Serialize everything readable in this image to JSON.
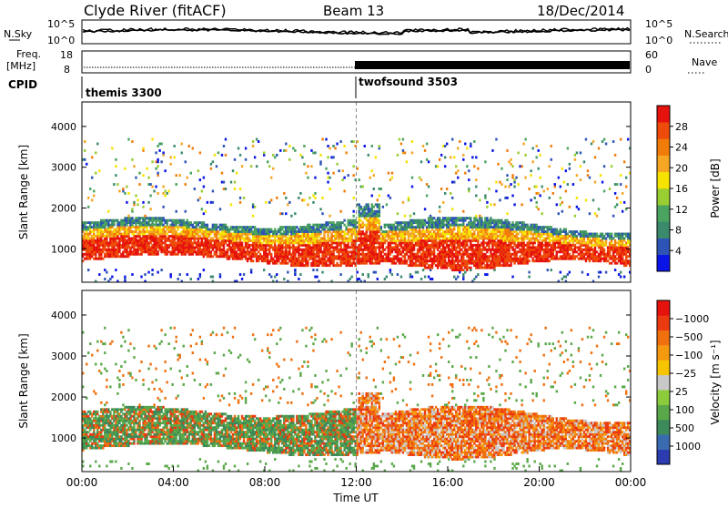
{
  "header": {
    "station": "Clyde River (fitACF)",
    "beam": "Beam 13",
    "date": "18/Dec/2014"
  },
  "status_panels": {
    "nsky_label": "N.Sky",
    "nsearch_label": "N.Search",
    "noise_ticks_left": [
      "10^5",
      "10^0"
    ],
    "noise_ticks_right": [
      "10^5",
      "10^0"
    ],
    "freq_label": "Freq.",
    "freq_unit": "[MHz]",
    "freq_ticks": [
      "18",
      "8"
    ],
    "nave_label": "Nave",
    "nave_ticks": [
      "60",
      "0"
    ],
    "cpid_label": "CPID",
    "cpid_segments": [
      {
        "name": "themis 3300",
        "start_hour": 0,
        "end_hour": 12
      },
      {
        "name": "twofsound 3503",
        "start_hour": 12,
        "end_hour": 24
      }
    ]
  },
  "chart_data": [
    {
      "type": "heatmap",
      "panel": "power",
      "ylabel": "Slant Range [km]",
      "xlabel": "Time UT",
      "ylim": [
        180,
        4600
      ],
      "yticks": [
        "1000",
        "2000",
        "3000",
        "4000"
      ],
      "xticks": [
        "00:00",
        "04:00",
        "08:00",
        "12:00",
        "16:00",
        "20:00",
        "00:00"
      ],
      "colorbar_label": "Power [dB]",
      "colorbar_ticks": [
        "4",
        "8",
        "12",
        "16",
        "20",
        "24",
        "28"
      ],
      "colorbar_colors": [
        "#0a14e6",
        "#2d53b6",
        "#3b8a6b",
        "#4aa35e",
        "#9acd32",
        "#f6e400",
        "#f5a623",
        "#f27c0a",
        "#ee4a0a",
        "#e6120e"
      ],
      "main_band_km": [
        700,
        1700
      ],
      "sparse_echo_km": [
        1800,
        3600
      ]
    },
    {
      "type": "heatmap",
      "panel": "velocity",
      "ylabel": "Slant Range [km]",
      "xlabel": "Time UT",
      "ylim": [
        180,
        4600
      ],
      "yticks": [
        "1000",
        "2000",
        "3000",
        "4000"
      ],
      "xticks": [
        "00:00",
        "04:00",
        "08:00",
        "12:00",
        "16:00",
        "20:00",
        "00:00"
      ],
      "colorbar_label": "Velocity [m s⁻¹]",
      "colorbar_ticks": [
        "1000",
        "500",
        "100",
        "25",
        "−25",
        "−100",
        "−500",
        "−1000"
      ],
      "colorbar_colors": [
        "#2a3cb0",
        "#3a6bb0",
        "#3d8a5a",
        "#5aa84a",
        "#8ccc3c",
        "#c8c8c8",
        "#f6c400",
        "#f59a10",
        "#f07010",
        "#ec3a10",
        "#e6120e"
      ]
    }
  ]
}
